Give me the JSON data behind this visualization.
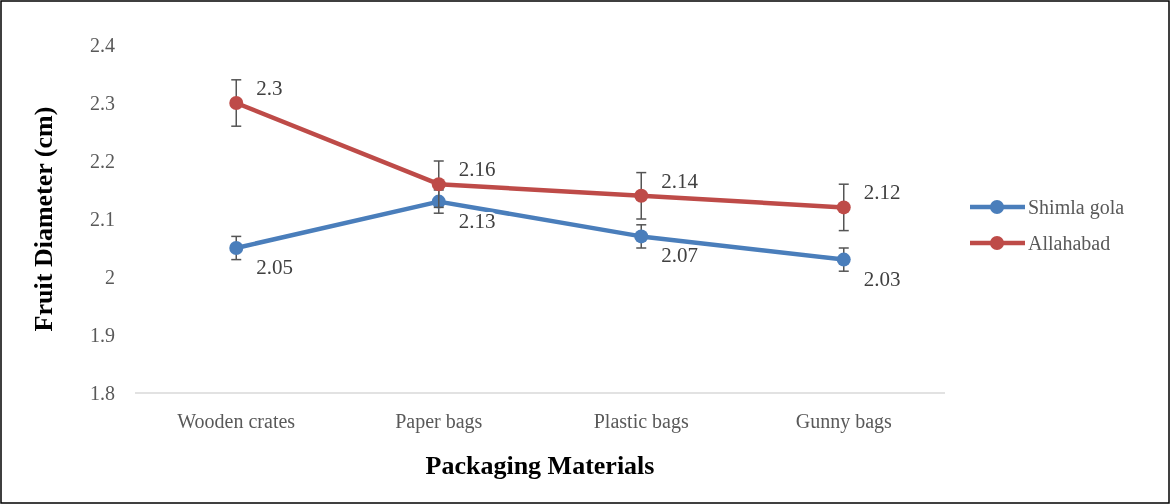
{
  "chart_data": {
    "type": "line",
    "xlabel": "Packaging Materials",
    "ylabel": "Fruit Diameter (cm)",
    "categories": [
      "Wooden crates",
      "Paper bags",
      "Plastic bags",
      "Gunny bags"
    ],
    "series": [
      {
        "name": "Shimla gola",
        "color": "#4a7ebb",
        "values": [
          2.05,
          2.13,
          2.07,
          2.03
        ],
        "errors": [
          0.02,
          0.02,
          0.02,
          0.02
        ]
      },
      {
        "name": "Allahabad",
        "color": "#be4b48",
        "values": [
          2.3,
          2.16,
          2.14,
          2.12
        ],
        "errors": [
          0.04,
          0.04,
          0.04,
          0.04
        ]
      }
    ],
    "ylim": [
      1.8,
      2.4
    ],
    "yticks": [
      1.8,
      1.9,
      2,
      2.1,
      2.2,
      2.3,
      2.4
    ],
    "grid": false,
    "legend": "right",
    "marker": "circle",
    "line_style": "solid",
    "data_labels": true
  }
}
